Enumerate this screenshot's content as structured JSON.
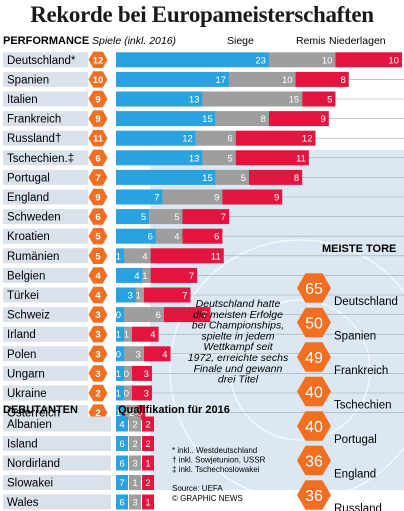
{
  "title": "Rekorde bei Europameisterschaften",
  "colors": {
    "games": "#1f1f1f",
    "wins": "#29a3e0",
    "draws": "#9e9e9e",
    "losses": "#e3143e",
    "orange": "#f26f22",
    "label_bg": "#d9e1ea",
    "panel_bg": "#dbe8f3"
  },
  "performance": {
    "header": "PERFORMANCE",
    "col_games": "Spiele (inkl. 2016)",
    "col_wins": "Siege",
    "col_draws": "Remis",
    "col_losses": "Niederlagen"
  },
  "chart_data": {
    "type": "bar",
    "stacked": true,
    "orientation": "horizontal",
    "title": "Rekorde bei Europameisterschaften",
    "categories": [
      "Deutschland*",
      "Spanien",
      "Italien",
      "Frankreich",
      "Russland†",
      "Tschechien.‡",
      "Portugal",
      "England",
      "Schweden",
      "Kroatien",
      "Rumänien",
      "Belgien",
      "Türkei",
      "Schweiz",
      "Irland",
      "Polen",
      "Ungarn",
      "Ukraine",
      "Österreich"
    ],
    "games": [
      12,
      10,
      9,
      9,
      11,
      6,
      7,
      9,
      6,
      5,
      5,
      4,
      4,
      3,
      3,
      3,
      3,
      2,
      2
    ],
    "series": [
      {
        "name": "Siege",
        "values": [
          23,
          17,
          13,
          15,
          12,
          13,
          15,
          7,
          5,
          6,
          1,
          4,
          3,
          0,
          1,
          0,
          1,
          1,
          1
        ]
      },
      {
        "name": "Remis",
        "values": [
          10,
          10,
          15,
          8,
          6,
          5,
          5,
          9,
          5,
          4,
          4,
          1,
          1,
          6,
          1,
          3,
          0,
          0,
          2
        ]
      },
      {
        "name": "Niederlagen",
        "values": [
          10,
          8,
          5,
          9,
          12,
          11,
          8,
          9,
          7,
          6,
          11,
          7,
          7,
          7,
          4,
          4,
          3,
          3,
          0
        ]
      }
    ]
  },
  "debutants": {
    "header": "DEBUTANTEN",
    "qual_header": "Qualifikation für 2016",
    "rows": [
      {
        "name": "Albanien",
        "values": [
          4,
          2,
          2
        ]
      },
      {
        "name": "Island",
        "values": [
          6,
          2,
          2
        ]
      },
      {
        "name": "Nordirland",
        "values": [
          6,
          3,
          1
        ]
      },
      {
        "name": "Slowakei",
        "values": [
          7,
          1,
          2
        ]
      },
      {
        "name": "Wales",
        "values": [
          6,
          3,
          1
        ]
      }
    ]
  },
  "top_scorers": {
    "header": "MEISTE TORE",
    "items": [
      {
        "value": 65,
        "name": "Deutschland"
      },
      {
        "value": 50,
        "name": "Spanien"
      },
      {
        "value": 49,
        "name": "Frankreich"
      },
      {
        "value": 40,
        "name": "Tschechien"
      },
      {
        "value": 40,
        "name": "Portugal"
      },
      {
        "value": 36,
        "name": "England"
      },
      {
        "value": 36,
        "name": "Russland"
      }
    ]
  },
  "annotation": [
    "Deutschland hatte",
    "die meisten Erfolge",
    "bei Championships,",
    "spielte in jedem",
    "Wettkampf seit",
    "1972, erreichte sechs",
    "Finale und gewann",
    "drei Titel"
  ],
  "footnotes": [
    "* inkl.. Westdeutschland",
    "† inkl. Sowjetunion, USSR",
    "‡ inkl. Tschechoslowakei"
  ],
  "source": "Source: UEFA",
  "credit": "© GRAPHIC NEWS"
}
